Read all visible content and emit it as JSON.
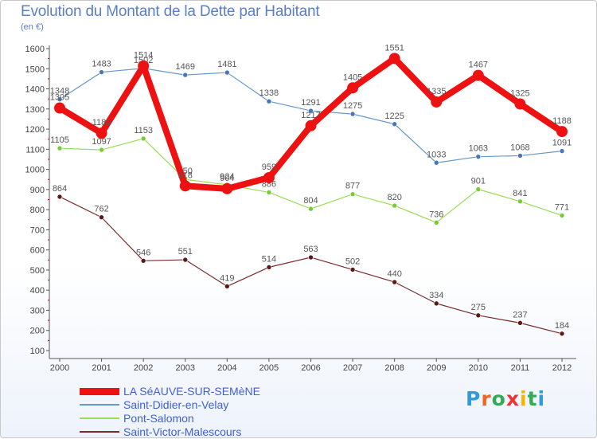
{
  "title": "Evolution du Montant de la Dette par Habitant",
  "subtitle": "(en €)",
  "brand": "Proxiti",
  "chart_data": {
    "type": "line",
    "title": "Evolution du Montant de la Dette par Habitant",
    "ylabel": "(en €)",
    "xlabel": "",
    "ylim": [
      100,
      1600
    ],
    "yticks": [
      100,
      200,
      300,
      400,
      500,
      600,
      700,
      800,
      900,
      1000,
      1100,
      1200,
      1300,
      1400,
      1500,
      1600
    ],
    "grid": false,
    "legend_placement": "bottom-left",
    "x": [
      "2000",
      "2001",
      "2002",
      "2003",
      "2004",
      "2005",
      "2006",
      "2007",
      "2008",
      "2009",
      "2010",
      "2011",
      "2012"
    ],
    "series": [
      {
        "name": "Saint-Victor-Malescours",
        "color": "#7a2a2a",
        "values": [
          864,
          762,
          546,
          551,
          419,
          514,
          563,
          502,
          440,
          334,
          275,
          237,
          184
        ]
      },
      {
        "name": "Pont-Salomon",
        "color": "#99dd55",
        "values": [
          1105,
          1097,
          1153,
          950,
          924,
          886,
          804,
          877,
          820,
          736,
          901,
          841,
          771
        ]
      },
      {
        "name": "Saint-Didier-en-Velay",
        "color": "#6699cc",
        "values": [
          1348,
          1483,
          1502,
          1469,
          1481,
          1338,
          1291,
          1275,
          1225,
          1033,
          1063,
          1068,
          1091
        ]
      },
      {
        "name": "LA SéAUVE-SUR-SEMèNE",
        "color": "#ee1111",
        "values": [
          1305,
          1180,
          1514,
          918,
          904,
          959,
          1217,
          1405,
          1551,
          1335,
          1467,
          1325,
          1188
        ]
      }
    ]
  }
}
